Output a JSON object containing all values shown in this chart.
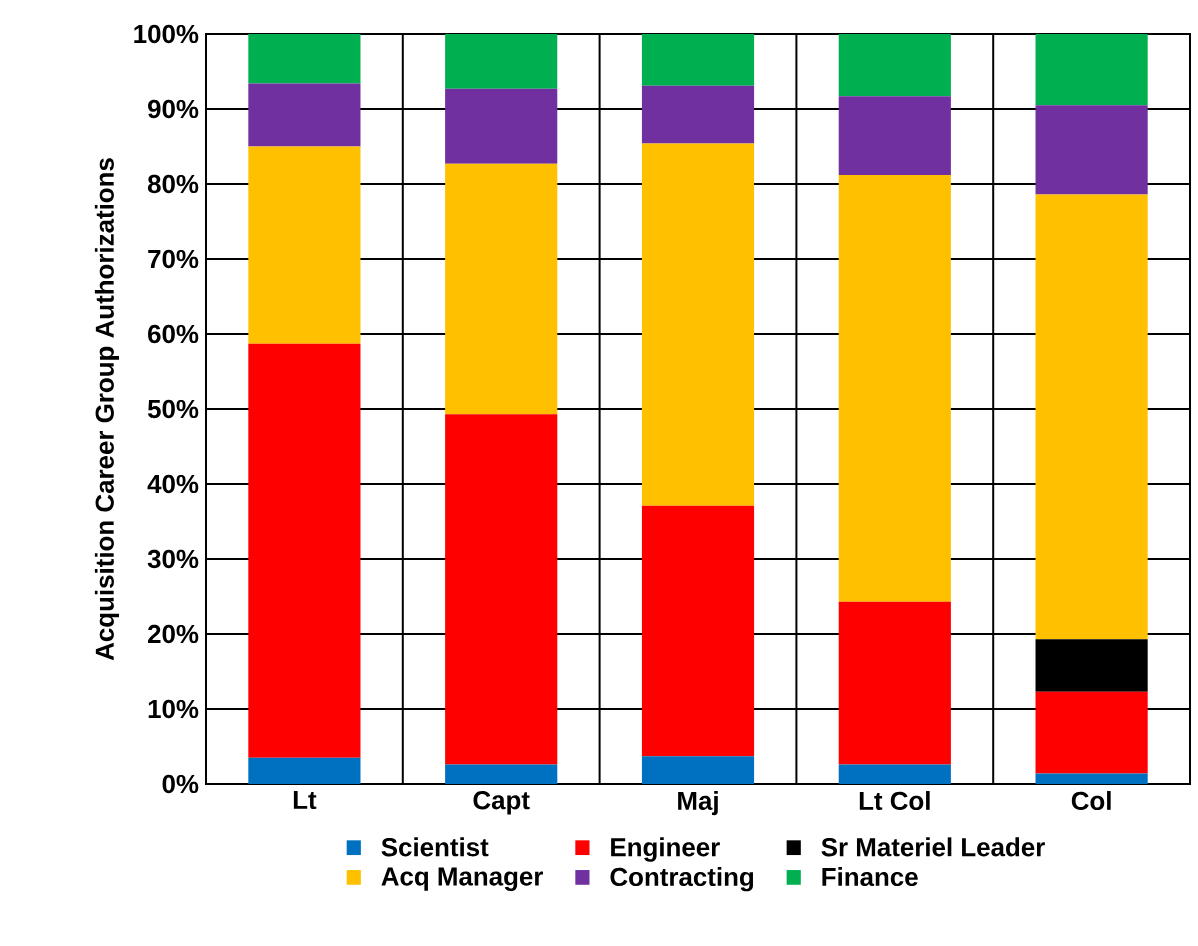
{
  "chart_data": {
    "type": "bar",
    "stacked": true,
    "ylabel": "Acquisition Career Group Authorizations",
    "categories": [
      "Lt",
      "Capt",
      "Maj",
      "Lt Col",
      "Col"
    ],
    "series": [
      {
        "name": "Scientist",
        "color": "#0070c0",
        "values": [
          3.5,
          2.6,
          3.7,
          2.6,
          1.4
        ]
      },
      {
        "name": "Engineer",
        "color": "#ff0000",
        "values": [
          55.2,
          46.7,
          33.4,
          21.7,
          10.9
        ]
      },
      {
        "name": "Sr Materiel Leader",
        "color": "#000000",
        "values": [
          0,
          0,
          0,
          0,
          7.0
        ]
      },
      {
        "name": "Acq Manager",
        "color": "#ffc000",
        "values": [
          26.3,
          33.4,
          48.3,
          56.9,
          59.3
        ]
      },
      {
        "name": "Contracting",
        "color": "#7030a0",
        "values": [
          8.4,
          10.0,
          7.7,
          10.5,
          11.9
        ]
      },
      {
        "name": "Finance",
        "color": "#00b050",
        "values": [
          6.6,
          7.3,
          6.9,
          8.3,
          9.5
        ]
      }
    ],
    "ylim": [
      0,
      100
    ],
    "yticks": [
      {
        "value": 0,
        "label": "0%"
      },
      {
        "value": 10,
        "label": "10%"
      },
      {
        "value": 20,
        "label": "20%"
      },
      {
        "value": 30,
        "label": "30%"
      },
      {
        "value": 40,
        "label": "40%"
      },
      {
        "value": 50,
        "label": "50%"
      },
      {
        "value": 60,
        "label": "60%"
      },
      {
        "value": 70,
        "label": "70%"
      },
      {
        "value": 80,
        "label": "80%"
      },
      {
        "value": 90,
        "label": "90%"
      },
      {
        "value": 100,
        "label": "100%"
      }
    ],
    "grid": true,
    "legend": "bottom"
  }
}
